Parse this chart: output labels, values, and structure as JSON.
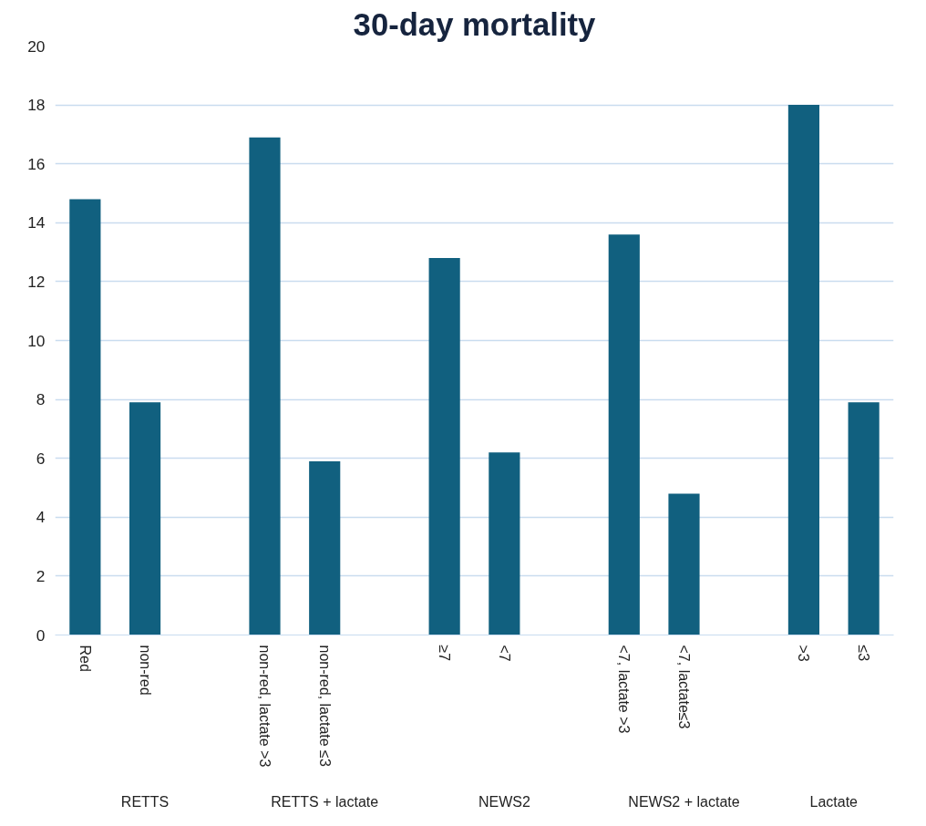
{
  "chart_data": {
    "type": "bar",
    "title": "30-day mortality",
    "categories": [
      "Red",
      "non-red",
      null,
      "non-red, lactate >3",
      "non-red, lactate ≤3",
      null,
      "≥7",
      "<7",
      null,
      "<7, lactate >3",
      "<7, lactate≤3",
      null,
      ">3",
      "≤3"
    ],
    "values": [
      14.8,
      7.9,
      null,
      16.9,
      5.9,
      null,
      12.8,
      6.2,
      null,
      13.6,
      4.8,
      null,
      18.0,
      7.9
    ],
    "color": "#11607f",
    "ylim": [
      0,
      20
    ],
    "yticks": [
      0,
      2,
      4,
      6,
      8,
      10,
      12,
      14,
      16,
      18,
      20
    ],
    "grid": "y",
    "annotations": [
      "RETTS",
      "RETTS + lactate",
      "NEWS2",
      "NEWS2 + lactate",
      "Lactate"
    ]
  }
}
